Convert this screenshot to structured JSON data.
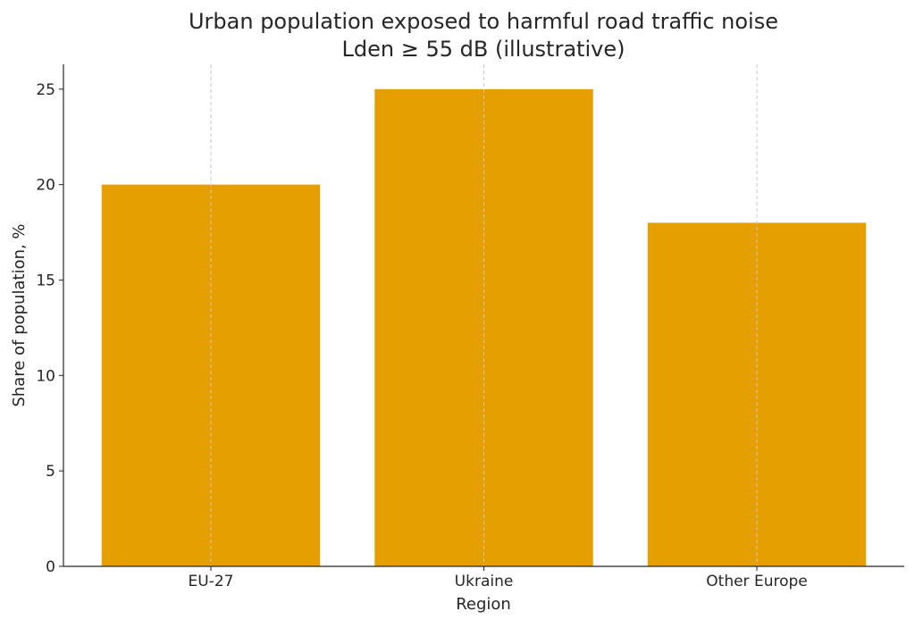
{
  "chart_data": {
    "type": "bar",
    "title": "Urban population exposed to harmful road traffic noise",
    "subtitle": "Lden ≥ 55 dB (illustrative)",
    "xlabel": "Region",
    "ylabel": "Share of population, %",
    "categories": [
      "EU-27",
      "Ukraine",
      "Other Europe"
    ],
    "values": [
      20,
      25,
      18
    ],
    "ylim": [
      0,
      26.3
    ],
    "xlim": [
      -0.54,
      2.54
    ],
    "yticks": [
      0,
      5,
      10,
      15,
      20,
      25
    ],
    "grid": "x-dashed",
    "bar_color": "#E69F00"
  }
}
